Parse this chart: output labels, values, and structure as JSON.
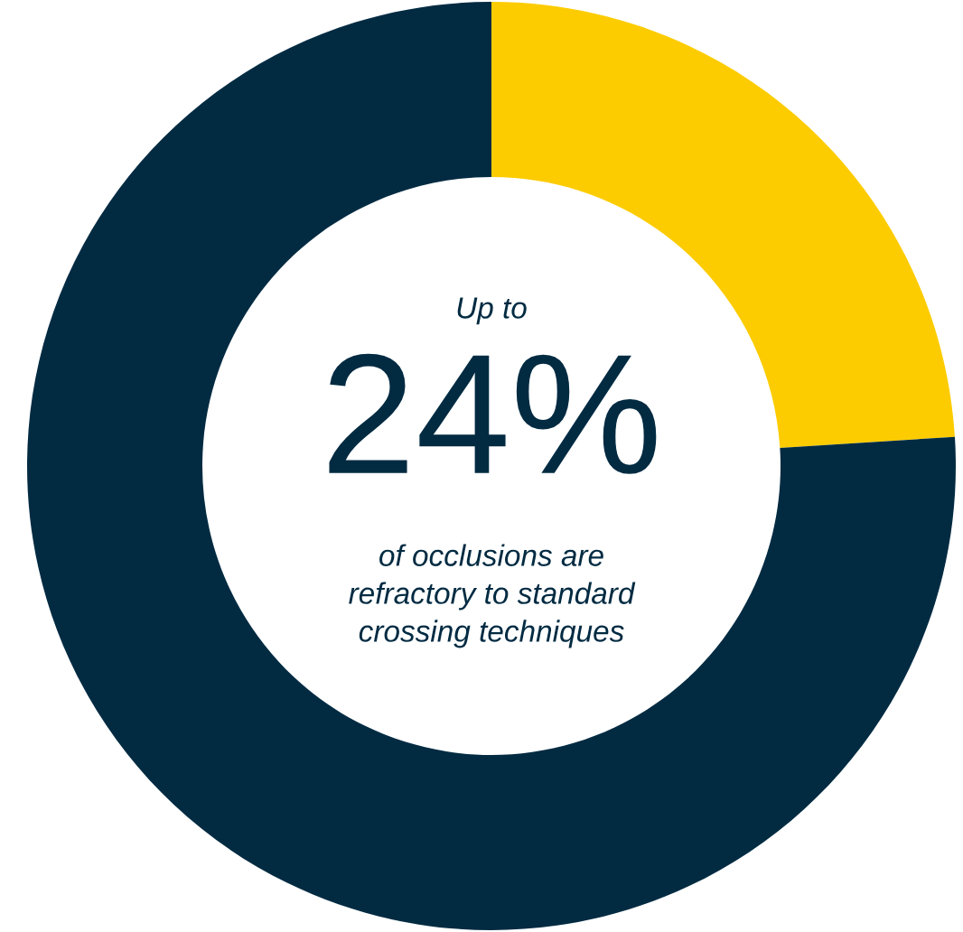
{
  "chart_data": {
    "type": "donut",
    "categories": [
      null,
      null
    ],
    "values": [
      24,
      76
    ],
    "colors": [
      "#fccc00",
      "#022b42"
    ],
    "annotations": [
      "Up to",
      "24%",
      "of occlusions are\nrefractory to standard\ncrossing techniques"
    ]
  }
}
